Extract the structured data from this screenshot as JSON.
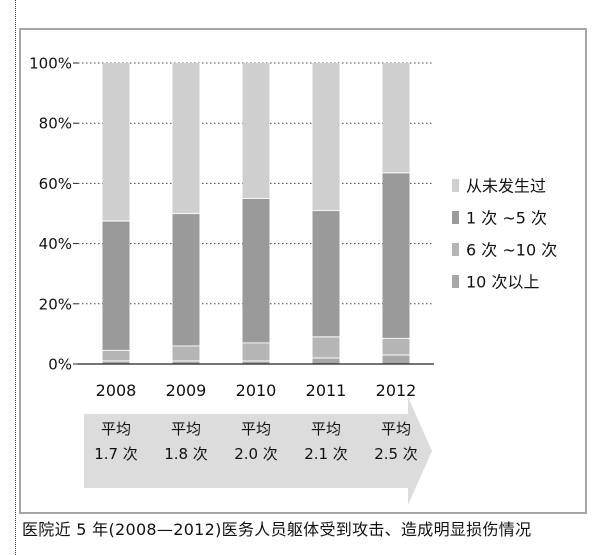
{
  "chart_data": {
    "type": "bar",
    "stacked": true,
    "normalized": true,
    "categories": [
      "2008",
      "2009",
      "2010",
      "2011",
      "2012"
    ],
    "ylim": [
      0,
      100
    ],
    "y_ticks": [
      "0%",
      "20%",
      "40%",
      "60%",
      "80%",
      "100%"
    ],
    "grid": true,
    "legend_position": "right",
    "series": [
      {
        "name": "10 次以上",
        "color": "#a7a7a7",
        "values": [
          1,
          1,
          1,
          2,
          3
        ]
      },
      {
        "name": "6 次 ~10 次",
        "color": "#b5b5b5",
        "values": [
          3.5,
          5,
          6,
          7,
          5.5
        ]
      },
      {
        "name": "1 次 ~5 次",
        "color": "#9a9a9a",
        "values": [
          43,
          44,
          48,
          42,
          55
        ]
      },
      {
        "name": "从未发生过",
        "color": "#cfcfcf",
        "values": [
          52.5,
          50,
          45,
          49,
          36.5
        ]
      }
    ],
    "annotations": [
      {
        "label": "平均",
        "value": "1.7 次"
      },
      {
        "label": "平均",
        "value": "1.8 次"
      },
      {
        "label": "平均",
        "value": "2.0 次"
      },
      {
        "label": "平均",
        "value": "2.1 次"
      },
      {
        "label": "平均",
        "value": "2.5 次"
      }
    ],
    "caption": "医院近 5 年(2008—2012)医务人员躯体受到攻击、造成明显损伤情况"
  },
  "colors": {
    "arrow": "#dcdcdc",
    "frame": "#a6a6a6",
    "grid": "#444444",
    "text": "#111111"
  }
}
